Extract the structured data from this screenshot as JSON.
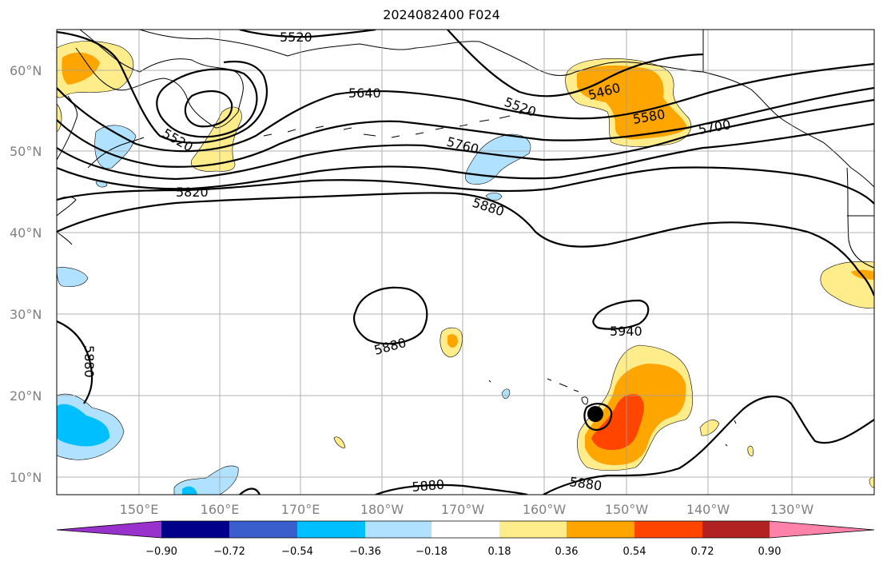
{
  "title": "2024082400 F024",
  "lat_labels": [
    "60°N",
    "50°N",
    "40°N",
    "30°N",
    "20°N",
    "10°N"
  ],
  "lon_labels": [
    "150°E",
    "160°E",
    "170°E",
    "180°W",
    "170°W",
    "160°W",
    "150°W",
    "140°W",
    "130°W"
  ],
  "contour_labels": [
    "5520",
    "5640",
    "5520",
    "5460",
    "5580",
    "5700",
    "5760",
    "5820",
    "5880",
    "5880",
    "5940",
    "5880",
    "5880",
    "5880",
    "5520"
  ],
  "colorbar": {
    "colors": [
      "#9932CC",
      "#00008B",
      "#3A5FCD",
      "#00BFFF",
      "#B0E2FF",
      "#FFFFFF",
      "#FFEC8B",
      "#FFA500",
      "#FF4500",
      "#B22222",
      "#FF82AB"
    ],
    "tick_labels": [
      "−0.90",
      "−0.72",
      "−0.54",
      "−0.36",
      "−0.18",
      "0.18",
      "0.36",
      "0.54",
      "0.72",
      "0.90"
    ]
  },
  "marker": "typhoon-center-marker"
}
